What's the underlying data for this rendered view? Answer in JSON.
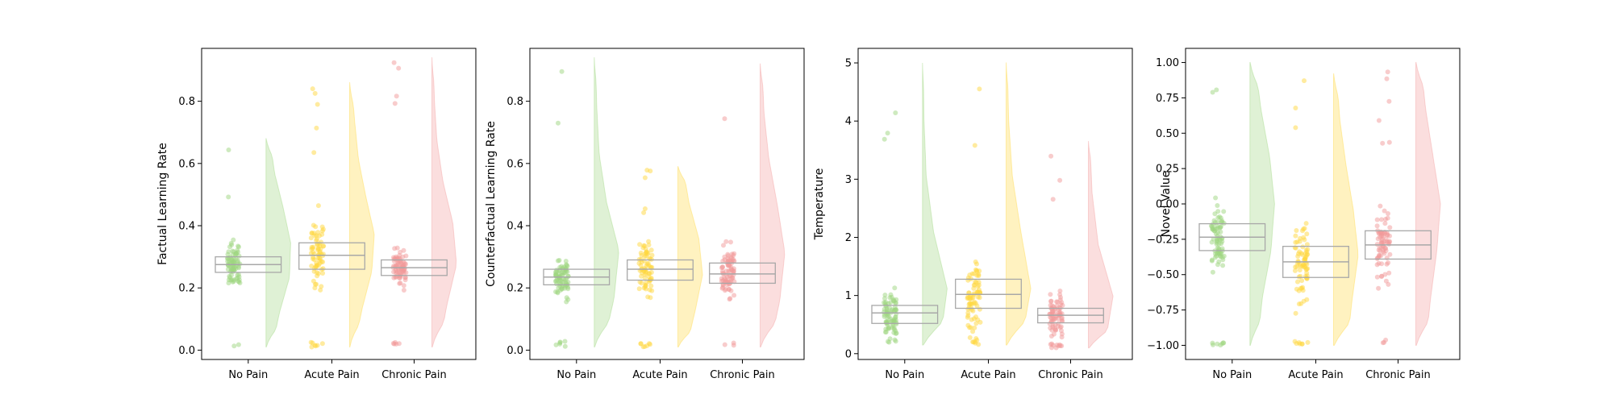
{
  "colors": {
    "No Pain": "#9ed67f",
    "Acute Pain": "#ffd740",
    "Chronic Pain": "#f29a9a",
    "box": "#a8a8a8"
  },
  "chart_data": [
    {
      "type": "raincloud",
      "ylabel": "Factual Learning Rate",
      "ylim": [
        -0.03,
        0.97
      ],
      "yticks": [
        "0.0",
        "0.2",
        "0.4",
        "0.6",
        "0.8"
      ],
      "categories": [
        "No Pain",
        "Acute Pain",
        "Chronic Pain"
      ],
      "groups": [
        {
          "name": "No Pain",
          "q1": 0.25,
          "median": 0.275,
          "q3": 0.3,
          "min": 0.01,
          "max": 0.68,
          "mode": 0.27,
          "density": [
            0.25,
            0.55,
            0.95,
            1.0,
            0.7,
            0.35,
            0.15
          ]
        },
        {
          "name": "Acute Pain",
          "q1": 0.26,
          "median": 0.305,
          "q3": 0.345,
          "min": 0.01,
          "max": 0.86,
          "mode": 0.3,
          "density": [
            0.2,
            0.5,
            0.9,
            1.0,
            0.65,
            0.35,
            0.2,
            0.08
          ]
        },
        {
          "name": "Chronic Pain",
          "q1": 0.24,
          "median": 0.265,
          "q3": 0.29,
          "min": 0.01,
          "max": 0.94,
          "mode": 0.26,
          "density": [
            0.3,
            0.6,
            1.0,
            0.85,
            0.45,
            0.2,
            0.1,
            0.05
          ]
        }
      ]
    },
    {
      "type": "raincloud",
      "ylabel": "Counterfactual Learning Rate",
      "ylim": [
        -0.03,
        0.97
      ],
      "yticks": [
        "0.0",
        "0.2",
        "0.4",
        "0.6",
        "0.8"
      ],
      "categories": [
        "No Pain",
        "Acute Pain",
        "Chronic Pain"
      ],
      "groups": [
        {
          "name": "No Pain",
          "q1": 0.21,
          "median": 0.235,
          "q3": 0.26,
          "min": 0.01,
          "max": 0.94,
          "mode": 0.23,
          "density": [
            0.35,
            0.8,
            1.0,
            0.5,
            0.2,
            0.1,
            0.05
          ]
        },
        {
          "name": "Acute Pain",
          "q1": 0.225,
          "median": 0.26,
          "q3": 0.29,
          "min": 0.01,
          "max": 0.59,
          "mode": 0.26,
          "density": [
            0.35,
            0.7,
            1.0,
            0.85,
            0.45,
            0.2
          ]
        },
        {
          "name": "Chronic Pain",
          "q1": 0.215,
          "median": 0.245,
          "q3": 0.28,
          "min": 0.01,
          "max": 0.92,
          "mode": 0.25,
          "density": [
            0.4,
            0.8,
            1.0,
            0.7,
            0.35,
            0.15,
            0.08
          ]
        }
      ]
    },
    {
      "type": "raincloud",
      "ylabel": "Temperature",
      "ylim": [
        -0.1,
        5.25
      ],
      "yticks": [
        "0",
        "1",
        "2",
        "3",
        "4",
        "5"
      ],
      "categories": [
        "No Pain",
        "Acute Pain",
        "Chronic Pain"
      ],
      "groups": [
        {
          "name": "No Pain",
          "q1": 0.52,
          "median": 0.7,
          "q3": 0.83,
          "min": 0.15,
          "max": 5.0,
          "mode": 0.6,
          "density": [
            0.7,
            1.0,
            0.45,
            0.15,
            0.06,
            0.03
          ]
        },
        {
          "name": "Acute Pain",
          "q1": 0.78,
          "median": 1.02,
          "q3": 1.28,
          "min": 0.15,
          "max": 5.0,
          "mode": 0.8,
          "density": [
            0.6,
            1.0,
            0.6,
            0.25,
            0.1,
            0.05
          ]
        },
        {
          "name": "Chronic Pain",
          "q1": 0.53,
          "median": 0.66,
          "q3": 0.78,
          "min": 0.1,
          "max": 3.65,
          "mode": 0.62,
          "density": [
            0.65,
            1.0,
            0.4,
            0.15,
            0.06
          ]
        }
      ]
    },
    {
      "type": "raincloud",
      "ylabel": "Novel Value",
      "ylim": [
        -1.1,
        1.1
      ],
      "yticks": [
        "1.00",
        "0.75",
        "0.50",
        "0.25",
        "0.00",
        "−0.25",
        "−0.50",
        "−0.75",
        "−1.00"
      ],
      "categories": [
        "No Pain",
        "Acute Pain",
        "Chronic Pain"
      ],
      "groups": [
        {
          "name": "No Pain",
          "q1": -0.33,
          "median": -0.235,
          "q3": -0.14,
          "min": -1.0,
          "max": 1.0,
          "mode": -0.2,
          "density": [
            0.3,
            0.5,
            0.85,
            1.0,
            0.8,
            0.45,
            0.2
          ]
        },
        {
          "name": "Acute Pain",
          "q1": -0.52,
          "median": -0.41,
          "q3": -0.3,
          "min": -1.0,
          "max": 0.92,
          "mode": -0.4,
          "density": [
            0.55,
            0.75,
            1.0,
            0.8,
            0.5,
            0.25,
            0.12
          ]
        },
        {
          "name": "Chronic Pain",
          "q1": -0.39,
          "median": -0.29,
          "q3": -0.19,
          "min": -1.0,
          "max": 1.0,
          "mode": -0.25,
          "density": [
            0.4,
            0.6,
            0.85,
            1.0,
            0.7,
            0.4,
            0.2
          ]
        }
      ]
    }
  ]
}
